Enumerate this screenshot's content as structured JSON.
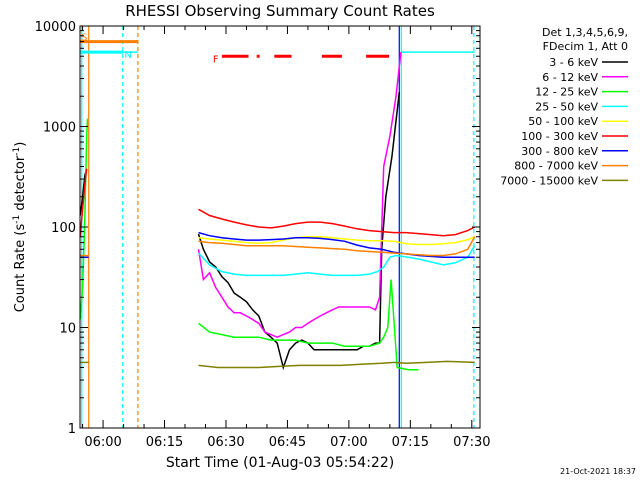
{
  "chart_data": {
    "type": "line",
    "title": "RHESSI Observing Summary Count Rates",
    "xlabel": "Start Time (01-Aug-03 05:54:22)",
    "ylabel_prefix": "Count Rate (s",
    "ylabel_sup1": "-1",
    "ylabel_mid": " detector",
    "ylabel_sup2": "-1",
    "ylabel_suffix": ")",
    "yscale": "log",
    "ylim": [
      1,
      10000
    ],
    "xlim": [
      354.37,
      1532
    ],
    "yticks": [
      {
        "v": 1,
        "label": "1"
      },
      {
        "v": 10,
        "label": "10"
      },
      {
        "v": 100,
        "label": "100"
      },
      {
        "v": 1000,
        "label": "1000"
      },
      {
        "v": 10000,
        "label": "10000"
      }
    ],
    "xticks": [
      {
        "t": 360,
        "label": "06:00"
      },
      {
        "t": 375,
        "label": "06:15"
      },
      {
        "t": 390,
        "label": "06:30"
      },
      {
        "t": 405,
        "label": "06:45"
      },
      {
        "t": 420,
        "label": "07:00"
      },
      {
        "t": 435,
        "label": "07:15"
      },
      {
        "t": 450,
        "label": "07:30"
      }
    ],
    "legend_header": [
      "Det 1,3,4,5,6,9,",
      "FDecim 1, Att 0"
    ],
    "legend_position": "top-right outside",
    "footer_date": "21-Oct-2021 18:37",
    "gap": {
      "start": 368.5,
      "end": 383.0
    },
    "series": [
      {
        "name": "3 - 6 keV",
        "color": "#000000",
        "points": [
          [
            354.4,
            130
          ],
          [
            354.7,
            160
          ],
          [
            355.0,
            200
          ],
          [
            355.3,
            260
          ],
          [
            355.6,
            330
          ],
          [
            356.0,
            380
          ],
          [
            383.3,
            85
          ],
          [
            384.5,
            60
          ],
          [
            386,
            45
          ],
          [
            387.5,
            40
          ],
          [
            389,
            32
          ],
          [
            390.5,
            28
          ],
          [
            392,
            22
          ],
          [
            393.5,
            20
          ],
          [
            395,
            18
          ],
          [
            396.5,
            15
          ],
          [
            398,
            13
          ],
          [
            399.5,
            9
          ],
          [
            401,
            8
          ],
          [
            402.5,
            7
          ],
          [
            404,
            4
          ],
          [
            405.5,
            6
          ],
          [
            407,
            7
          ],
          [
            408.5,
            7.5
          ],
          [
            410,
            7
          ],
          [
            411.5,
            6
          ],
          [
            413,
            6
          ],
          [
            414.5,
            6
          ],
          [
            416,
            6
          ],
          [
            417.5,
            6
          ],
          [
            419,
            6
          ],
          [
            420.5,
            6
          ],
          [
            422,
            6
          ],
          [
            423.5,
            6.5
          ],
          [
            425,
            6.5
          ],
          [
            426.5,
            7
          ],
          [
            427.5,
            7
          ],
          [
            428,
            60
          ],
          [
            429,
            200
          ],
          [
            430.5,
            500
          ],
          [
            432.3,
            2200
          ]
        ]
      },
      {
        "name": "6 - 12 keV",
        "color": "#ff00ff",
        "points": [
          [
            383.3,
            60
          ],
          [
            384.5,
            30
          ],
          [
            386,
            35
          ],
          [
            387.5,
            25
          ],
          [
            389,
            20
          ],
          [
            390.5,
            16
          ],
          [
            392,
            14
          ],
          [
            393.5,
            14
          ],
          [
            395,
            13
          ],
          [
            396.5,
            12
          ],
          [
            398,
            11
          ],
          [
            399.5,
            9
          ],
          [
            401,
            8.5
          ],
          [
            402.5,
            8
          ],
          [
            404,
            8.5
          ],
          [
            405.5,
            9
          ],
          [
            407,
            10
          ],
          [
            408.5,
            10
          ],
          [
            410,
            11
          ],
          [
            411.5,
            12
          ],
          [
            413,
            13
          ],
          [
            414.5,
            14
          ],
          [
            416,
            15
          ],
          [
            417.5,
            16
          ],
          [
            419,
            16
          ],
          [
            420.5,
            16
          ],
          [
            422,
            16
          ],
          [
            423.5,
            16
          ],
          [
            425,
            16
          ],
          [
            426.5,
            15
          ],
          [
            427.5,
            20
          ],
          [
            428.5,
            400
          ],
          [
            430,
            800
          ],
          [
            431.5,
            2000
          ],
          [
            432.7,
            5500
          ]
        ]
      },
      {
        "name": "12 - 25 keV",
        "color": "#00ff00",
        "points": [
          [
            354.4,
            12
          ],
          [
            355.0,
            25
          ],
          [
            355.5,
            100
          ],
          [
            356.0,
            800
          ],
          [
            356.2,
            1200
          ],
          [
            383.3,
            11
          ],
          [
            386,
            9
          ],
          [
            389,
            8.5
          ],
          [
            392,
            8
          ],
          [
            395,
            8
          ],
          [
            398,
            8
          ],
          [
            401,
            7.5
          ],
          [
            404,
            7.5
          ],
          [
            407,
            7.5
          ],
          [
            410,
            7
          ],
          [
            413,
            7
          ],
          [
            416,
            7
          ],
          [
            419,
            6.5
          ],
          [
            422,
            6.5
          ],
          [
            425,
            6.5
          ],
          [
            427.5,
            7
          ],
          [
            428.5,
            8
          ],
          [
            429.5,
            10
          ],
          [
            430.3,
            30
          ],
          [
            431.8,
            4
          ],
          [
            434.5,
            3.8
          ],
          [
            437,
            3.8
          ]
        ]
      },
      {
        "name": "25 - 50 keV",
        "color": "#00ffff",
        "points": [
          [
            354.4,
            5500
          ],
          [
            368.5,
            5500
          ],
          [
            383.3,
            55
          ],
          [
            386,
            42
          ],
          [
            389,
            36
          ],
          [
            392,
            34
          ],
          [
            395,
            33
          ],
          [
            398,
            33
          ],
          [
            401,
            33
          ],
          [
            404,
            33
          ],
          [
            407,
            34
          ],
          [
            410,
            35
          ],
          [
            413,
            34
          ],
          [
            416,
            33
          ],
          [
            419,
            33
          ],
          [
            422,
            33
          ],
          [
            425,
            34
          ],
          [
            427,
            36
          ],
          [
            428.5,
            40
          ],
          [
            430,
            50
          ],
          [
            431.5,
            52
          ],
          [
            434.5,
            50
          ],
          [
            437,
            48
          ],
          [
            440,
            45
          ],
          [
            443,
            42
          ],
          [
            446,
            44
          ],
          [
            449,
            50
          ],
          [
            450.7,
            65
          ],
          [
            432.8,
            5500
          ],
          [
            450.7,
            5500
          ]
        ]
      },
      {
        "name": "50 - 100 keV",
        "color": "#ffff00",
        "points": [
          [
            354.4,
            50
          ],
          [
            356.5,
            50
          ],
          [
            383.3,
            78
          ],
          [
            386,
            76
          ],
          [
            389,
            74
          ],
          [
            392,
            72
          ],
          [
            395,
            70
          ],
          [
            398,
            69
          ],
          [
            401,
            70
          ],
          [
            404,
            74
          ],
          [
            407,
            78
          ],
          [
            410,
            80
          ],
          [
            413,
            80
          ],
          [
            416,
            78
          ],
          [
            419,
            76
          ],
          [
            422,
            74
          ],
          [
            425,
            73
          ],
          [
            428,
            73
          ],
          [
            431,
            72
          ],
          [
            434,
            68
          ],
          [
            437,
            67
          ],
          [
            440,
            67
          ],
          [
            443,
            68
          ],
          [
            446,
            70
          ],
          [
            449,
            75
          ],
          [
            450.7,
            80
          ]
        ]
      },
      {
        "name": "100 - 300 keV",
        "color": "#ff0000",
        "points": [
          [
            354.4,
            80
          ],
          [
            355.0,
            150
          ],
          [
            355.5,
            250
          ],
          [
            356.0,
            380
          ],
          [
            383.3,
            150
          ],
          [
            386,
            130
          ],
          [
            389,
            120
          ],
          [
            392,
            112
          ],
          [
            395,
            105
          ],
          [
            398,
            100
          ],
          [
            401,
            98
          ],
          [
            404,
            102
          ],
          [
            407,
            108
          ],
          [
            410,
            112
          ],
          [
            413,
            112
          ],
          [
            416,
            108
          ],
          [
            419,
            102
          ],
          [
            422,
            96
          ],
          [
            425,
            92
          ],
          [
            428,
            90
          ],
          [
            431,
            88
          ],
          [
            434,
            88
          ],
          [
            437,
            86
          ],
          [
            440,
            84
          ],
          [
            443,
            82
          ],
          [
            446,
            84
          ],
          [
            449,
            92
          ],
          [
            450.7,
            100
          ]
        ]
      },
      {
        "name": "300 - 800 keV",
        "color": "#0000ff",
        "points": [
          [
            354.4,
            50
          ],
          [
            356.5,
            50
          ],
          [
            383.3,
            88
          ],
          [
            386,
            82
          ],
          [
            389,
            78
          ],
          [
            392,
            76
          ],
          [
            395,
            74
          ],
          [
            398,
            74
          ],
          [
            401,
            75
          ],
          [
            404,
            76
          ],
          [
            407,
            78
          ],
          [
            410,
            78
          ],
          [
            413,
            77
          ],
          [
            416,
            75
          ],
          [
            419,
            72
          ],
          [
            422,
            66
          ],
          [
            425,
            62
          ],
          [
            428,
            60
          ],
          [
            431,
            56
          ],
          [
            434,
            54
          ],
          [
            437,
            52
          ],
          [
            440,
            51
          ],
          [
            443,
            50
          ],
          [
            446,
            50
          ],
          [
            449,
            50
          ],
          [
            450.7,
            50
          ]
        ]
      },
      {
        "name": "800 - 7000 keV",
        "color": "#ff8000",
        "points": [
          [
            354.4,
            52
          ],
          [
            356.5,
            52
          ],
          [
            383.3,
            72
          ],
          [
            386,
            70
          ],
          [
            389,
            69
          ],
          [
            392,
            67
          ],
          [
            395,
            65
          ],
          [
            398,
            65
          ],
          [
            401,
            65
          ],
          [
            404,
            65
          ],
          [
            407,
            64
          ],
          [
            410,
            63
          ],
          [
            413,
            62
          ],
          [
            416,
            61
          ],
          [
            419,
            60
          ],
          [
            422,
            58
          ],
          [
            425,
            57
          ],
          [
            428,
            56
          ],
          [
            431,
            55
          ],
          [
            434,
            54
          ],
          [
            437,
            53
          ],
          [
            440,
            52
          ],
          [
            443,
            52
          ],
          [
            446,
            54
          ],
          [
            449,
            60
          ],
          [
            450.7,
            80
          ]
        ]
      },
      {
        "name": "7000 - 15000 keV",
        "color": "#808000",
        "points": [
          [
            354.4,
            4.5
          ],
          [
            356.5,
            4.5
          ],
          [
            383.3,
            4.2
          ],
          [
            388,
            4.0
          ],
          [
            393,
            4.0
          ],
          [
            398,
            4.0
          ],
          [
            403,
            4.1
          ],
          [
            408,
            4.2
          ],
          [
            413,
            4.2
          ],
          [
            418,
            4.2
          ],
          [
            423,
            4.3
          ],
          [
            428,
            4.4
          ],
          [
            431,
            4.5
          ],
          [
            434,
            4.4
          ],
          [
            439,
            4.5
          ],
          [
            444,
            4.6
          ],
          [
            450.7,
            4.5
          ]
        ]
      }
    ],
    "overlay_lines": [
      {
        "name": "saa-line",
        "label": "S",
        "label_color": "#ff8000",
        "color": "#ff8000",
        "y": 7000,
        "t0": 354.4,
        "t1": 368.5,
        "label_t": 354.6
      },
      {
        "name": "night-line",
        "label": "N",
        "label_color": "#00ffff",
        "color": "#00ffff",
        "y": 5500,
        "t0": 354.4,
        "t1": 364.8,
        "label_t": 365.2
      },
      {
        "name": "flare-segments",
        "label": "F",
        "label_color": "#ff0000",
        "color": "#ff0000",
        "y": 5000,
        "segments": [
          [
            389.0,
            395.5
          ],
          [
            397.5,
            398.2
          ],
          [
            401.8,
            406.0
          ],
          [
            413.4,
            418.3
          ],
          [
            424.2,
            429.8
          ]
        ],
        "label_t": 386.8
      }
    ],
    "vertical_markers": [
      {
        "t": 354.8,
        "color": "#00ffff",
        "dashed": false
      },
      {
        "t": 356.5,
        "color": "#ff8000",
        "dashed": false
      },
      {
        "t": 364.8,
        "color": "#00ffff",
        "dashed": true
      },
      {
        "t": 368.5,
        "color": "#ff8000",
        "dashed": true
      },
      {
        "t": 432.3,
        "color": "#0000ff",
        "dashed": false
      },
      {
        "t": 432.8,
        "color": "#00ffff",
        "dashed": false
      },
      {
        "t": 450.5,
        "color": "#00ffff",
        "dashed": true
      }
    ]
  }
}
